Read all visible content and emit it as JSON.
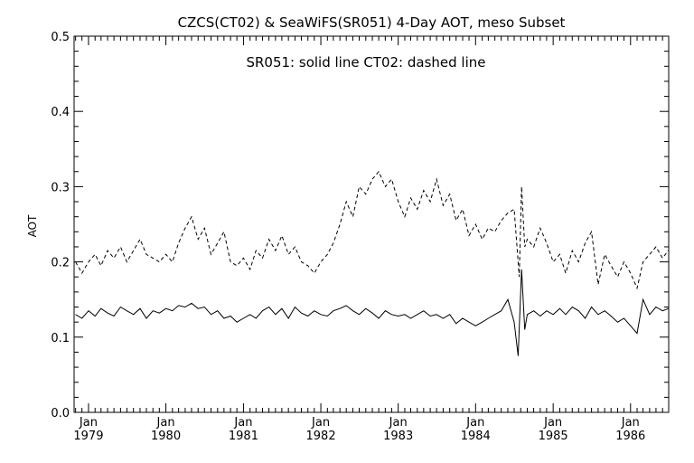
{
  "chart_data": {
    "type": "line",
    "title": "CZCS(CT02) & SeaWiFS(SR051) 4-Day AOT, meso Subset",
    "legend_text": "SR051: solid line    CT02: dashed line",
    "ylabel": "AOT",
    "xlabel": "",
    "ylim": [
      0.0,
      0.5
    ],
    "xlim": [
      "1978-10-25",
      "1986-06-30"
    ],
    "yticks": [
      "0.0",
      "0.1",
      "0.2",
      "0.3",
      "0.4",
      "0.5"
    ],
    "xticks": [
      {
        "month": "Jan",
        "year": "1979",
        "date": "1979-01-01"
      },
      {
        "month": "Jan",
        "year": "1980",
        "date": "1980-01-01"
      },
      {
        "month": "Jan",
        "year": "1981",
        "date": "1981-01-01"
      },
      {
        "month": "Jan",
        "year": "1982",
        "date": "1982-01-01"
      },
      {
        "month": "Jan",
        "year": "1983",
        "date": "1983-01-01"
      },
      {
        "month": "Jan",
        "year": "1984",
        "date": "1984-01-01"
      },
      {
        "month": "Jan",
        "year": "1985",
        "date": "1985-01-01"
      },
      {
        "month": "Jan",
        "year": "1986",
        "date": "1986-01-01"
      }
    ],
    "grid": false,
    "series": [
      {
        "name": "SR051",
        "style": "solid",
        "color": "#000000",
        "points": [
          [
            "1978-11-01",
            0.13
          ],
          [
            "1978-12-01",
            0.125
          ],
          [
            "1979-01-01",
            0.135
          ],
          [
            "1979-02-01",
            0.128
          ],
          [
            "1979-03-01",
            0.138
          ],
          [
            "1979-04-01",
            0.132
          ],
          [
            "1979-05-01",
            0.128
          ],
          [
            "1979-06-01",
            0.14
          ],
          [
            "1979-07-01",
            0.135
          ],
          [
            "1979-08-01",
            0.13
          ],
          [
            "1979-09-01",
            0.138
          ],
          [
            "1979-10-01",
            0.125
          ],
          [
            "1979-11-01",
            0.135
          ],
          [
            "1979-12-01",
            0.132
          ],
          [
            "1980-01-01",
            0.138
          ],
          [
            "1980-02-01",
            0.135
          ],
          [
            "1980-03-01",
            0.142
          ],
          [
            "1980-04-01",
            0.14
          ],
          [
            "1980-05-01",
            0.145
          ],
          [
            "1980-06-01",
            0.138
          ],
          [
            "1980-07-01",
            0.14
          ],
          [
            "1980-08-01",
            0.13
          ],
          [
            "1980-09-01",
            0.135
          ],
          [
            "1980-10-01",
            0.125
          ],
          [
            "1980-11-01",
            0.128
          ],
          [
            "1980-12-01",
            0.12
          ],
          [
            "1981-01-01",
            0.125
          ],
          [
            "1981-02-01",
            0.13
          ],
          [
            "1981-03-01",
            0.125
          ],
          [
            "1981-04-01",
            0.135
          ],
          [
            "1981-05-01",
            0.14
          ],
          [
            "1981-06-01",
            0.13
          ],
          [
            "1981-07-01",
            0.138
          ],
          [
            "1981-08-01",
            0.125
          ],
          [
            "1981-09-01",
            0.14
          ],
          [
            "1981-10-01",
            0.132
          ],
          [
            "1981-11-01",
            0.128
          ],
          [
            "1981-12-01",
            0.135
          ],
          [
            "1982-01-01",
            0.13
          ],
          [
            "1982-02-01",
            0.128
          ],
          [
            "1982-03-01",
            0.135
          ],
          [
            "1982-04-01",
            0.138
          ],
          [
            "1982-05-01",
            0.142
          ],
          [
            "1982-06-01",
            0.135
          ],
          [
            "1982-07-01",
            0.13
          ],
          [
            "1982-08-01",
            0.138
          ],
          [
            "1982-09-01",
            0.132
          ],
          [
            "1982-10-01",
            0.125
          ],
          [
            "1982-11-01",
            0.135
          ],
          [
            "1982-12-01",
            0.13
          ],
          [
            "1983-01-01",
            0.128
          ],
          [
            "1983-02-01",
            0.13
          ],
          [
            "1983-03-01",
            0.125
          ],
          [
            "1983-04-01",
            0.13
          ],
          [
            "1983-05-01",
            0.135
          ],
          [
            "1983-06-01",
            0.128
          ],
          [
            "1983-07-01",
            0.13
          ],
          [
            "1983-08-01",
            0.125
          ],
          [
            "1983-09-01",
            0.13
          ],
          [
            "1983-10-01",
            0.118
          ],
          [
            "1983-11-01",
            0.125
          ],
          [
            "1983-12-01",
            0.12
          ],
          [
            "1984-01-01",
            0.115
          ],
          [
            "1984-02-01",
            0.12
          ],
          [
            "1984-03-01",
            0.125
          ],
          [
            "1984-04-01",
            0.13
          ],
          [
            "1984-05-01",
            0.135
          ],
          [
            "1984-06-01",
            0.15
          ],
          [
            "1984-07-01",
            0.12
          ],
          [
            "1984-07-20",
            0.075
          ],
          [
            "1984-08-05",
            0.19
          ],
          [
            "1984-08-20",
            0.11
          ],
          [
            "1984-09-01",
            0.13
          ],
          [
            "1984-10-01",
            0.135
          ],
          [
            "1984-11-01",
            0.128
          ],
          [
            "1984-12-01",
            0.135
          ],
          [
            "1985-01-01",
            0.13
          ],
          [
            "1985-02-01",
            0.138
          ],
          [
            "1985-03-01",
            0.13
          ],
          [
            "1985-04-01",
            0.14
          ],
          [
            "1985-05-01",
            0.135
          ],
          [
            "1985-06-01",
            0.125
          ],
          [
            "1985-07-01",
            0.14
          ],
          [
            "1985-08-01",
            0.13
          ],
          [
            "1985-09-01",
            0.135
          ],
          [
            "1985-10-01",
            0.128
          ],
          [
            "1985-11-01",
            0.12
          ],
          [
            "1985-12-01",
            0.125
          ],
          [
            "1986-01-01",
            0.115
          ],
          [
            "1986-02-01",
            0.105
          ],
          [
            "1986-03-01",
            0.15
          ],
          [
            "1986-04-01",
            0.13
          ],
          [
            "1986-05-01",
            0.14
          ],
          [
            "1986-06-01",
            0.135
          ],
          [
            "1986-06-28",
            0.138
          ]
        ]
      },
      {
        "name": "CT02",
        "style": "dashed",
        "color": "#000000",
        "points": [
          [
            "1978-11-01",
            0.2
          ],
          [
            "1978-12-01",
            0.185
          ],
          [
            "1979-01-01",
            0.2
          ],
          [
            "1979-02-01",
            0.21
          ],
          [
            "1979-03-01",
            0.195
          ],
          [
            "1979-04-01",
            0.215
          ],
          [
            "1979-05-01",
            0.205
          ],
          [
            "1979-06-01",
            0.22
          ],
          [
            "1979-07-01",
            0.2
          ],
          [
            "1979-08-01",
            0.215
          ],
          [
            "1979-09-01",
            0.23
          ],
          [
            "1979-10-01",
            0.21
          ],
          [
            "1979-11-01",
            0.205
          ],
          [
            "1979-12-01",
            0.2
          ],
          [
            "1980-01-01",
            0.21
          ],
          [
            "1980-02-01",
            0.2
          ],
          [
            "1980-03-01",
            0.225
          ],
          [
            "1980-04-01",
            0.245
          ],
          [
            "1980-05-01",
            0.26
          ],
          [
            "1980-06-01",
            0.23
          ],
          [
            "1980-07-01",
            0.245
          ],
          [
            "1980-08-01",
            0.21
          ],
          [
            "1980-09-01",
            0.225
          ],
          [
            "1980-10-01",
            0.24
          ],
          [
            "1980-11-01",
            0.2
          ],
          [
            "1980-12-01",
            0.195
          ],
          [
            "1981-01-01",
            0.205
          ],
          [
            "1981-02-01",
            0.19
          ],
          [
            "1981-03-01",
            0.215
          ],
          [
            "1981-04-01",
            0.205
          ],
          [
            "1981-05-01",
            0.23
          ],
          [
            "1981-06-01",
            0.215
          ],
          [
            "1981-07-01",
            0.235
          ],
          [
            "1981-08-01",
            0.21
          ],
          [
            "1981-09-01",
            0.22
          ],
          [
            "1981-10-01",
            0.2
          ],
          [
            "1981-11-01",
            0.195
          ],
          [
            "1981-12-01",
            0.185
          ],
          [
            "1982-01-01",
            0.2
          ],
          [
            "1982-02-01",
            0.21
          ],
          [
            "1982-03-01",
            0.225
          ],
          [
            "1982-04-01",
            0.25
          ],
          [
            "1982-05-01",
            0.28
          ],
          [
            "1982-06-01",
            0.26
          ],
          [
            "1982-07-01",
            0.3
          ],
          [
            "1982-08-01",
            0.29
          ],
          [
            "1982-09-01",
            0.31
          ],
          [
            "1982-10-01",
            0.32
          ],
          [
            "1982-11-01",
            0.3
          ],
          [
            "1982-12-01",
            0.31
          ],
          [
            "1983-01-01",
            0.28
          ],
          [
            "1983-02-01",
            0.26
          ],
          [
            "1983-03-01",
            0.285
          ],
          [
            "1983-04-01",
            0.27
          ],
          [
            "1983-05-01",
            0.295
          ],
          [
            "1983-06-01",
            0.28
          ],
          [
            "1983-07-01",
            0.31
          ],
          [
            "1983-08-01",
            0.275
          ],
          [
            "1983-09-01",
            0.29
          ],
          [
            "1983-10-01",
            0.255
          ],
          [
            "1983-11-01",
            0.27
          ],
          [
            "1983-12-01",
            0.235
          ],
          [
            "1984-01-01",
            0.25
          ],
          [
            "1984-02-01",
            0.23
          ],
          [
            "1984-03-01",
            0.245
          ],
          [
            "1984-04-01",
            0.24
          ],
          [
            "1984-05-01",
            0.255
          ],
          [
            "1984-06-01",
            0.265
          ],
          [
            "1984-07-01",
            0.27
          ],
          [
            "1984-07-25",
            0.18
          ],
          [
            "1984-08-05",
            0.3
          ],
          [
            "1984-08-20",
            0.22
          ],
          [
            "1984-09-01",
            0.23
          ],
          [
            "1984-10-01",
            0.22
          ],
          [
            "1984-11-01",
            0.245
          ],
          [
            "1984-12-01",
            0.225
          ],
          [
            "1985-01-01",
            0.2
          ],
          [
            "1985-02-01",
            0.21
          ],
          [
            "1985-03-01",
            0.185
          ],
          [
            "1985-04-01",
            0.215
          ],
          [
            "1985-05-01",
            0.2
          ],
          [
            "1985-06-01",
            0.225
          ],
          [
            "1985-07-01",
            0.24
          ],
          [
            "1985-08-01",
            0.17
          ],
          [
            "1985-09-01",
            0.21
          ],
          [
            "1985-10-01",
            0.195
          ],
          [
            "1985-11-01",
            0.18
          ],
          [
            "1985-12-01",
            0.2
          ],
          [
            "1986-01-01",
            0.185
          ],
          [
            "1986-02-01",
            0.165
          ],
          [
            "1986-03-01",
            0.2
          ],
          [
            "1986-04-01",
            0.21
          ],
          [
            "1986-05-01",
            0.22
          ],
          [
            "1986-06-01",
            0.205
          ],
          [
            "1986-06-28",
            0.215
          ]
        ]
      }
    ]
  }
}
